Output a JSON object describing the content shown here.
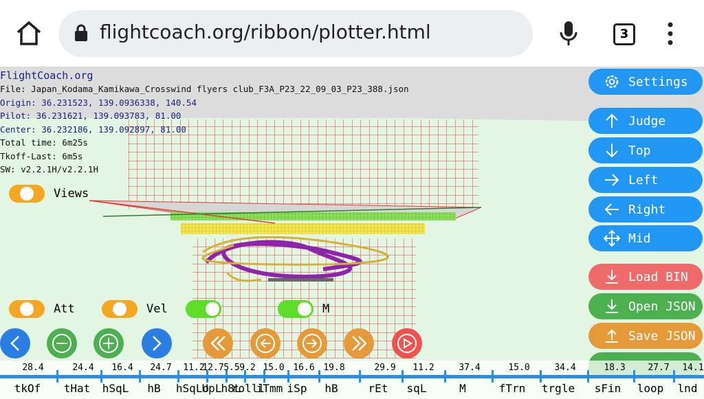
{
  "browser": {
    "url": "flightcoach.org/ribbon/plotter.html",
    "tab_count": "3"
  },
  "info": {
    "site": "FlightCoach.org",
    "file": "File: Japan_Kodama_Kamikawa_Crosswind flyers club_F3A_P23_22_09_03_P23_388.json",
    "origin": "Origin: 36.231523, 139.0936338, 140.54",
    "pilot": "Pilot: 36.231621, 139.093783, 81.00",
    "center": "Center: 36.232186, 139.092897, 81.00",
    "total_time": "Total time: 6m25s",
    "tkoff_last": "Tkoff-Last: 6m5s",
    "sw": "SW: v2.2.1H/v2.2.1H"
  },
  "toggles": {
    "views": "Views",
    "att": "Att",
    "vel": "Vel",
    "m": "M"
  },
  "buttons": {
    "settings": "Settings",
    "judge": "Judge",
    "top": "Top",
    "left": "Left",
    "right": "Right",
    "mid": "Mid",
    "load_bin": "Load BIN",
    "open_json": "Open JSON",
    "save_json": "Save JSON"
  },
  "timeline": {
    "values": [
      "28.4",
      "24.4",
      "16.4",
      "24.7",
      "11.2",
      "12.7",
      "5.5",
      "9.2",
      "15.0",
      "16.6",
      "19.8",
      "29.9",
      "11.2",
      "37.4",
      "15.0",
      "34.4",
      "18.3",
      "27.7",
      "14.1"
    ],
    "labels": [
      "tkOf",
      "tHat",
      "hSqL",
      "hB",
      "hSqLo",
      "UpL",
      "h8L",
      "rolll",
      "iTmm",
      "iSp",
      "hB",
      "rEt",
      "sqL",
      "M",
      "fTrn",
      "trgle",
      "sFin",
      "loop",
      "lnd"
    ]
  }
}
